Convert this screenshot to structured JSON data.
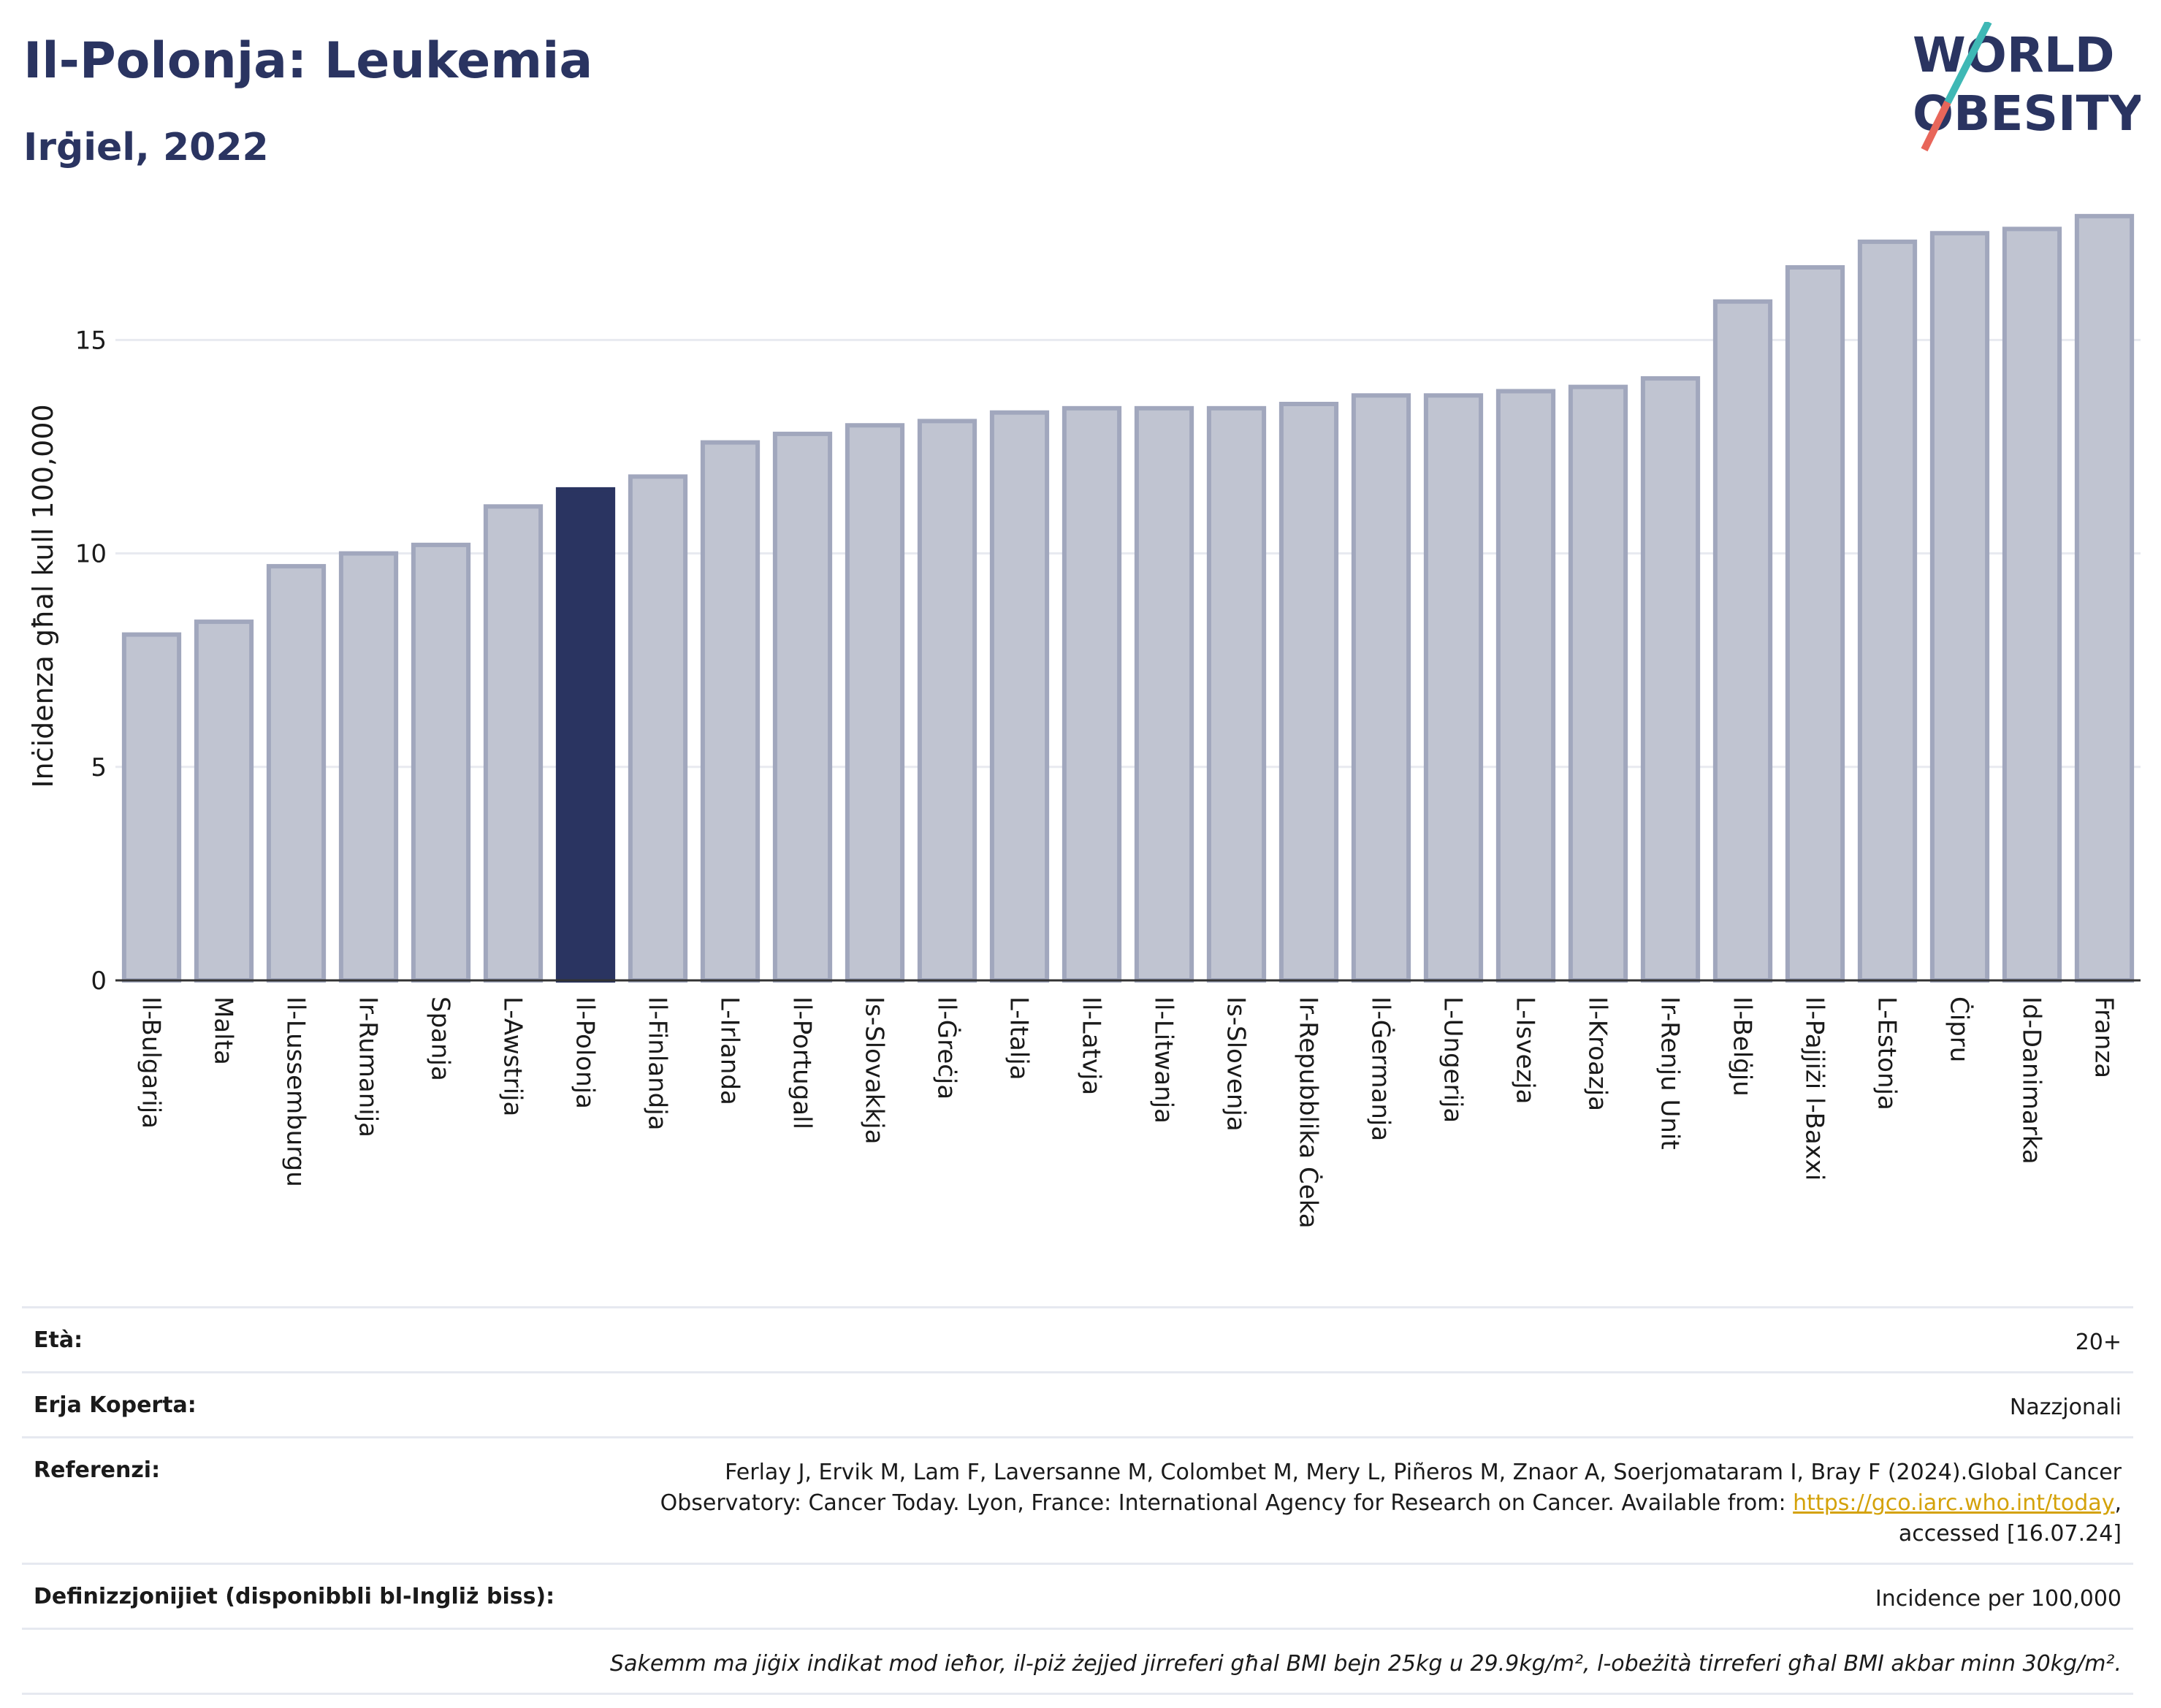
{
  "title": "Il-Polonja: Leukemia",
  "subtitle": "Irġiel, 2022",
  "logo": {
    "line1": "WORLD",
    "line2": "OBESITY"
  },
  "colors": {
    "highlight": "#2a3461",
    "bar": "#c0c4d1",
    "bar_stroke": "#a1a7bd",
    "accent_teal": "#3fb8b5",
    "accent_red": "#e8665a"
  },
  "chart_data": {
    "type": "bar",
    "ylabel": "Inċidenza għal kull 100,000",
    "ylim": [
      0,
      18
    ],
    "yticks": [
      0,
      5,
      10,
      15
    ],
    "grid": true,
    "highlight": "Il-Polonja",
    "categories": [
      "Il-Bulgarija",
      "Malta",
      "Il-Lussemburgu",
      "Ir-Rumanija",
      "Spanja",
      "L-Awstrija",
      "Il-Polonja",
      "Il-Finlandja",
      "L-Irlanda",
      "Il-Portugall",
      "Is-Slovakkja",
      "Il-Ġreċja",
      "L-Italja",
      "Il-Latvja",
      "Il-Litwanja",
      "Is-Slovenja",
      "Ir-Repubblika Ċeka",
      "Il-Ġermanja",
      "L-Ungerija",
      "L-Isvezja",
      "Il-Kroazja",
      "Ir-Renju Unit",
      "Il-Belġju",
      "Il-Pajjiżi l-Baxxi",
      "L-Estonja",
      "Ċipru",
      "Id-Danimarka",
      "Franza"
    ],
    "values": [
      8.1,
      8.4,
      9.7,
      10.0,
      10.2,
      11.1,
      11.5,
      11.8,
      12.6,
      12.8,
      13.0,
      13.1,
      13.3,
      13.4,
      13.4,
      13.4,
      13.5,
      13.7,
      13.7,
      13.8,
      13.9,
      14.1,
      15.9,
      16.7,
      17.3,
      17.5,
      17.6,
      17.9
    ]
  },
  "info": {
    "age_label": "Età:",
    "age_value": "20+",
    "area_label": "Erja Koperta:",
    "area_value": "Nazzjonali",
    "ref_label": "Referenzi:",
    "ref_text": "Ferlay J, Ervik M, Lam F, Laversanne M, Colombet M, Mery L, Piñeros M, Znaor A, Soerjomataram I, Bray F (2024).Global Cancer Observatory: Cancer Today. Lyon, France: International Agency for Research on Cancer. Available from: ",
    "ref_link": "https://gco.iarc.who.int/today",
    "ref_tail": ", accessed [16.07.24]",
    "def_label": "Definizzjonijiet (disponibbli bl-Ingliż biss):",
    "def_value": "Incidence per 100,000",
    "note": "Sakemm ma jiġix indikat mod ieħor, il-piż żejjed jirreferi għal BMI bejn 25kg u 29.9kg/m², l-obeżità tirreferi għal BMI akbar minn 30kg/m²."
  }
}
